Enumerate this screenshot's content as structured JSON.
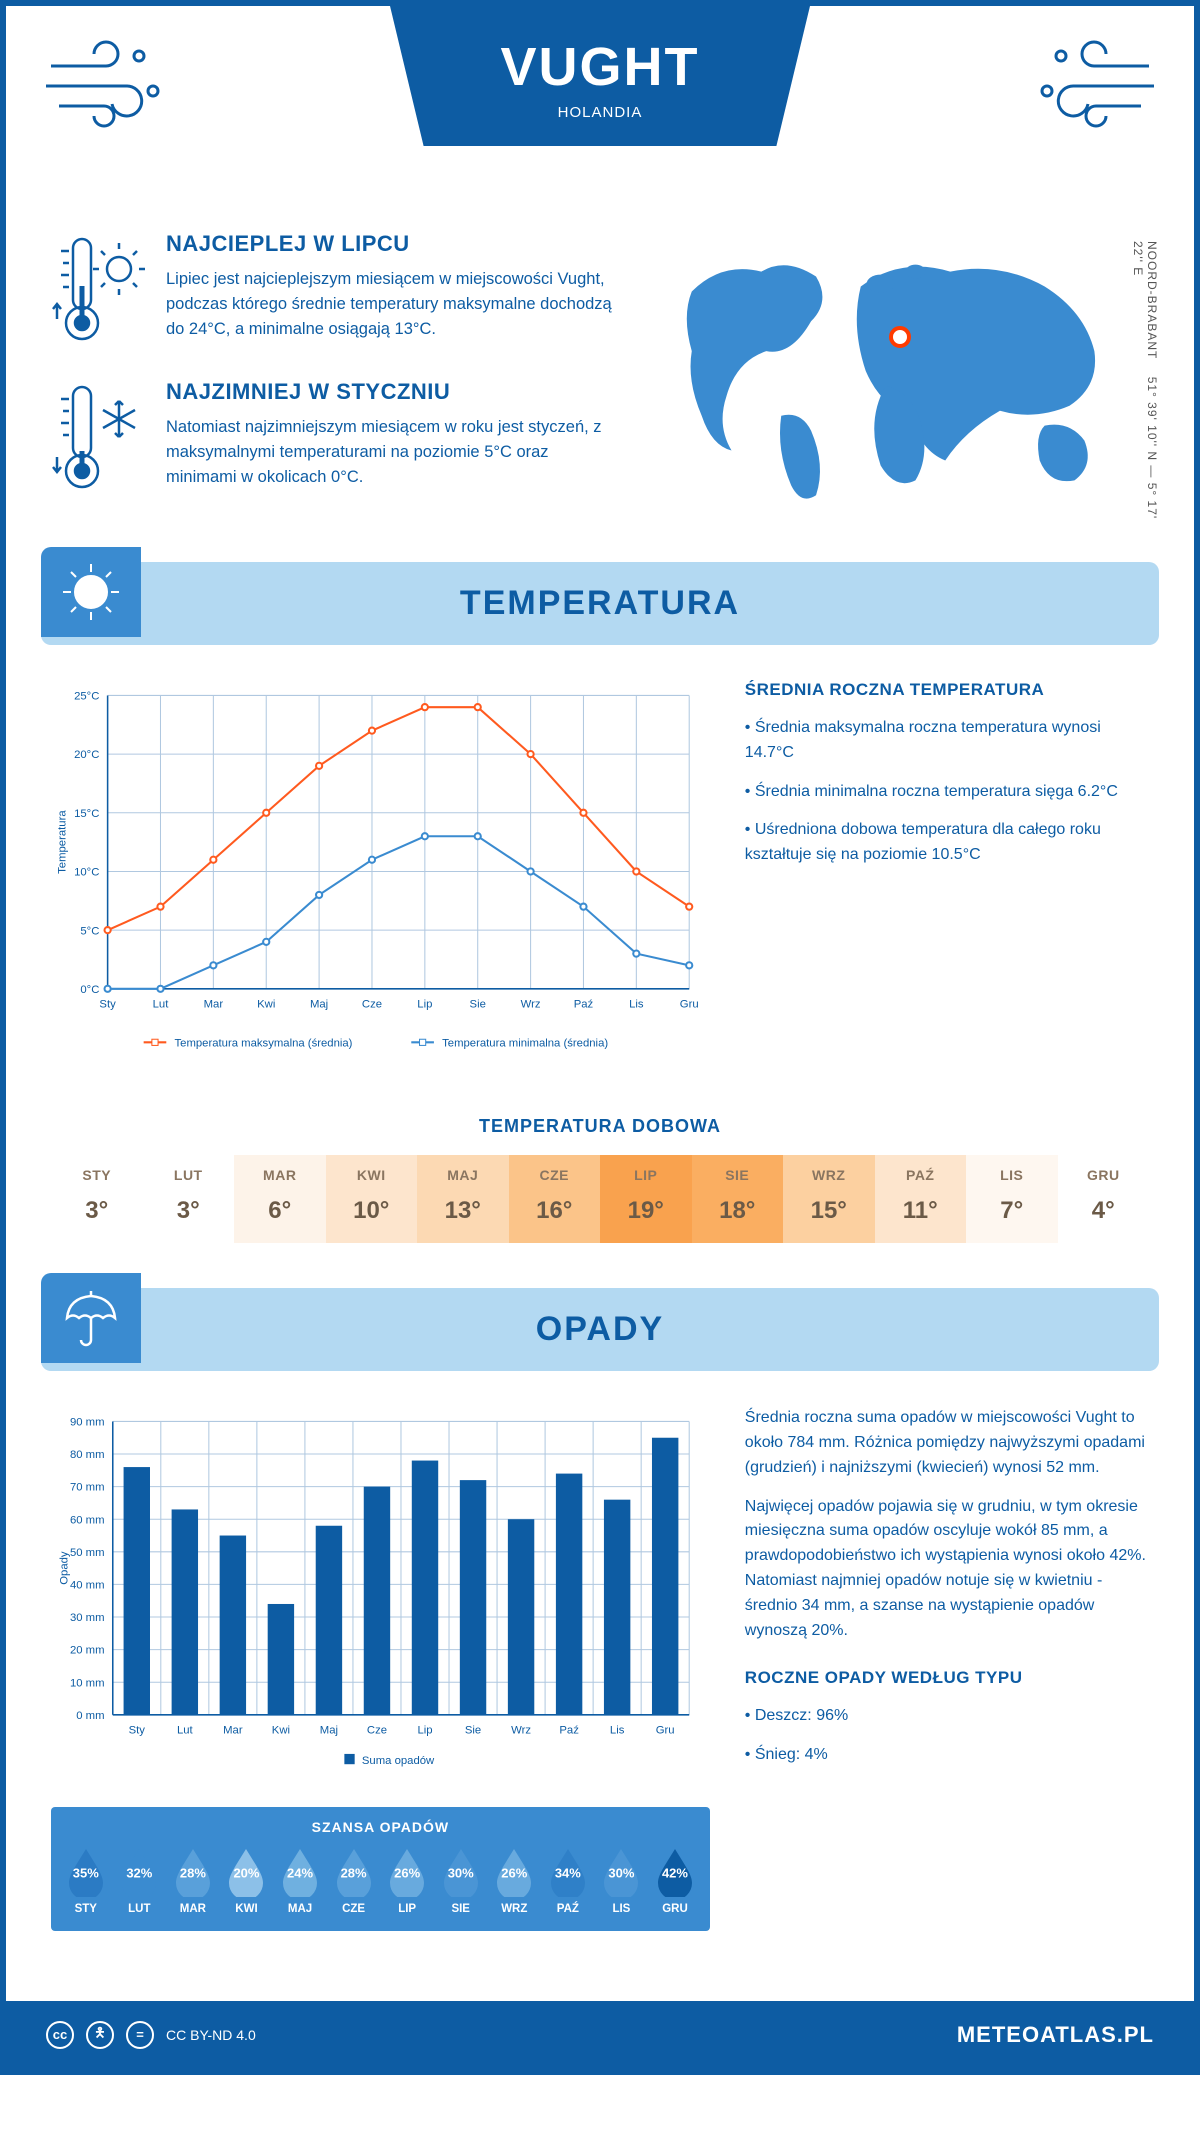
{
  "header": {
    "city": "VUGHT",
    "country": "HOLANDIA"
  },
  "coords": "51° 39' 10'' N — 5° 17' 22'' E",
  "region": "NOORD-BRABANT",
  "facts": {
    "hot": {
      "title": "NAJCIEPLEJ W LIPCU",
      "text": "Lipiec jest najcieplejszym miesiącem w miejscowości Vught, podczas którego średnie temperatury maksymalne dochodzą do 24°C, a minimalne osiągają 13°C."
    },
    "cold": {
      "title": "NAJZIMNIEJ W STYCZNIU",
      "text": "Natomiast najzimniejszym miesiącem w roku jest styczeń, z maksymalnymi temperaturami na poziomie 5°C oraz minimami w okolicach 0°C."
    }
  },
  "sections": {
    "temperature": "TEMPERATURA",
    "precipitation": "OPADY"
  },
  "temp_chart": {
    "type": "line",
    "months": [
      "Sty",
      "Lut",
      "Mar",
      "Kwi",
      "Maj",
      "Cze",
      "Lip",
      "Sie",
      "Wrz",
      "Paź",
      "Lis",
      "Gru"
    ],
    "series": [
      {
        "name": "Temperatura maksymalna (średnia)",
        "color": "#ff5a1f",
        "values": [
          5,
          7,
          11,
          15,
          19,
          22,
          24,
          24,
          20,
          15,
          10,
          7
        ]
      },
      {
        "name": "Temperatura minimalna (średnia)",
        "color": "#3a8bd0",
        "values": [
          0,
          0,
          2,
          4,
          8,
          11,
          13,
          13,
          10,
          7,
          3,
          2
        ]
      }
    ],
    "ylabel": "Temperatura",
    "ylim": [
      0,
      25
    ],
    "ytick_step": 5,
    "grid_color": "#b0c8e0",
    "axis_color": "#0d5ca3",
    "background": "#ffffff",
    "label_fontsize": 11,
    "tick_fontsize": 11,
    "line_width": 2,
    "marker_radius": 3
  },
  "temp_annual": {
    "title": "ŚREDNIA ROCZNA TEMPERATURA",
    "lines": [
      "Średnia maksymalna roczna temperatura wynosi 14.7°C",
      "Średnia minimalna roczna temperatura sięga 6.2°C",
      "Uśredniona dobowa temperatura dla całego roku kształtuje się na poziomie 10.5°C"
    ]
  },
  "daily_temp": {
    "title": "TEMPERATURA DOBOWA",
    "months": [
      "STY",
      "LUT",
      "MAR",
      "KWI",
      "MAJ",
      "CZE",
      "LIP",
      "SIE",
      "WRZ",
      "PAŹ",
      "LIS",
      "GRU"
    ],
    "values": [
      "3°",
      "3°",
      "6°",
      "10°",
      "13°",
      "16°",
      "19°",
      "18°",
      "15°",
      "11°",
      "7°",
      "4°"
    ],
    "colors": [
      "#ffffff",
      "#ffffff",
      "#fdf3e9",
      "#fde5cd",
      "#fcd9b3",
      "#fbc489",
      "#f9a24e",
      "#faae61",
      "#fcd0a0",
      "#fde5cd",
      "#fef7f0",
      "#ffffff"
    ]
  },
  "precip_chart": {
    "type": "bar",
    "months": [
      "Sty",
      "Lut",
      "Mar",
      "Kwi",
      "Maj",
      "Cze",
      "Lip",
      "Sie",
      "Wrz",
      "Paź",
      "Lis",
      "Gru"
    ],
    "values": [
      76,
      63,
      55,
      34,
      58,
      70,
      78,
      72,
      60,
      74,
      66,
      85
    ],
    "bar_color": "#0d5ca3",
    "ylabel": "Opady",
    "legend": "Suma opadów",
    "ylim": [
      0,
      90
    ],
    "ytick_step": 10,
    "grid_color": "#b0c8e0",
    "axis_color": "#0d5ca3",
    "bar_width": 0.55,
    "tick_fontsize": 11
  },
  "precip_desc": {
    "p1": "Średnia roczna suma opadów w miejscowości Vught to około 784 mm. Różnica pomiędzy najwyższymi opadami (grudzień) i najniższymi (kwiecień) wynosi 52 mm.",
    "p2": "Najwięcej opadów pojawia się w grudniu, w tym okresie miesięczna suma opadów oscyluje wokół 85 mm, a prawdopodobieństwo ich wystąpienia wynosi około 42%. Natomiast najmniej opadów notuje się w kwietniu - średnio 34 mm, a szanse na wystąpienie opadów wynoszą 20%."
  },
  "rain_chance": {
    "title": "SZANSA OPADÓW",
    "months": [
      "STY",
      "LUT",
      "MAR",
      "KWI",
      "MAJ",
      "CZE",
      "LIP",
      "SIE",
      "WRZ",
      "PAŹ",
      "LIS",
      "GRU"
    ],
    "values": [
      "35%",
      "32%",
      "28%",
      "20%",
      "24%",
      "28%",
      "26%",
      "30%",
      "26%",
      "34%",
      "30%",
      "42%"
    ],
    "colors": [
      "#2b7bc4",
      "#3a8bd0",
      "#59a0da",
      "#8cc0e8",
      "#6fb0e0",
      "#59a0da",
      "#68aade",
      "#4a95d5",
      "#68aade",
      "#2f80c8",
      "#4a95d5",
      "#0d5ca3"
    ]
  },
  "precip_type": {
    "title": "ROCZNE OPADY WEDŁUG TYPU",
    "lines": [
      "Deszcz: 96%",
      "Śnieg: 4%"
    ]
  },
  "footer": {
    "license": "CC BY-ND 4.0",
    "brand": "METEOATLAS.PL"
  },
  "palette": {
    "primary": "#0d5ca3",
    "light": "#b3d9f2",
    "mid": "#3a8bd0"
  }
}
